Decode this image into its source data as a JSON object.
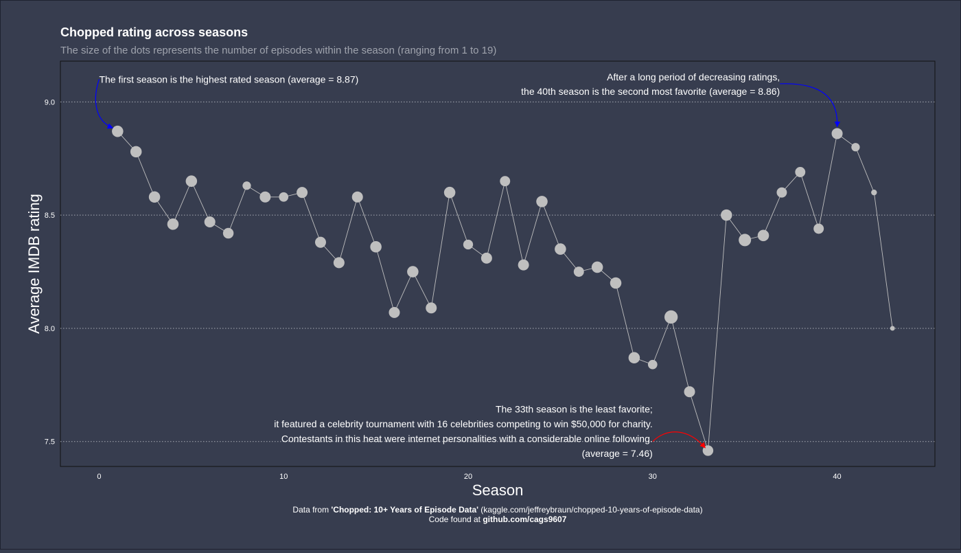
{
  "chart_data": {
    "type": "scatter",
    "title": "Chopped rating across seasons",
    "subtitle": "The size of the dots represents the number of episodes within the season (ranging from 1 to 19)",
    "xlabel": "Season",
    "ylabel": "Average IMDB rating",
    "xlim": [
      -2.1,
      45.3
    ],
    "ylim": [
      7.39,
      9.18
    ],
    "x_ticks": [
      0,
      10,
      20,
      30,
      40
    ],
    "y_ticks": [
      7.5,
      8.0,
      8.5,
      9.0
    ],
    "grid": "horizontal dotted",
    "connected": true,
    "colors": {
      "background": "#373d4f",
      "point": "#bfbfbf",
      "line": "#bfbfbf",
      "grid": "#a9adb6",
      "arrow_top": "#0000ff",
      "arrow_low": "#ff0000",
      "text": "#ffffff",
      "subtitle": "#9fa3ad"
    },
    "points": [
      {
        "season": 1,
        "rating": 8.87,
        "episodes": 13
      },
      {
        "season": 2,
        "rating": 8.78,
        "episodes": 13
      },
      {
        "season": 3,
        "rating": 8.58,
        "episodes": 13
      },
      {
        "season": 4,
        "rating": 8.46,
        "episodes": 13
      },
      {
        "season": 5,
        "rating": 8.65,
        "episodes": 13
      },
      {
        "season": 6,
        "rating": 8.47,
        "episodes": 12
      },
      {
        "season": 7,
        "rating": 8.42,
        "episodes": 11
      },
      {
        "season": 8,
        "rating": 8.63,
        "episodes": 6
      },
      {
        "season": 9,
        "rating": 8.58,
        "episodes": 12
      },
      {
        "season": 10,
        "rating": 8.58,
        "episodes": 8
      },
      {
        "season": 11,
        "rating": 8.6,
        "episodes": 12
      },
      {
        "season": 12,
        "rating": 8.38,
        "episodes": 12
      },
      {
        "season": 13,
        "rating": 8.29,
        "episodes": 12
      },
      {
        "season": 14,
        "rating": 8.58,
        "episodes": 12
      },
      {
        "season": 15,
        "rating": 8.36,
        "episodes": 13
      },
      {
        "season": 16,
        "rating": 8.07,
        "episodes": 12
      },
      {
        "season": 17,
        "rating": 8.25,
        "episodes": 13
      },
      {
        "season": 18,
        "rating": 8.09,
        "episodes": 12
      },
      {
        "season": 19,
        "rating": 8.6,
        "episodes": 13
      },
      {
        "season": 20,
        "rating": 8.37,
        "episodes": 9
      },
      {
        "season": 21,
        "rating": 8.31,
        "episodes": 12
      },
      {
        "season": 22,
        "rating": 8.65,
        "episodes": 10
      },
      {
        "season": 23,
        "rating": 8.28,
        "episodes": 12
      },
      {
        "season": 24,
        "rating": 8.56,
        "episodes": 13
      },
      {
        "season": 25,
        "rating": 8.35,
        "episodes": 13
      },
      {
        "season": 26,
        "rating": 8.25,
        "episodes": 10
      },
      {
        "season": 27,
        "rating": 8.27,
        "episodes": 13
      },
      {
        "season": 28,
        "rating": 8.2,
        "episodes": 13
      },
      {
        "season": 29,
        "rating": 7.87,
        "episodes": 13
      },
      {
        "season": 30,
        "rating": 7.84,
        "episodes": 8
      },
      {
        "season": 31,
        "rating": 8.05,
        "episodes": 19
      },
      {
        "season": 32,
        "rating": 7.72,
        "episodes": 12
      },
      {
        "season": 33,
        "rating": 7.46,
        "episodes": 11
      },
      {
        "season": 34,
        "rating": 8.5,
        "episodes": 13
      },
      {
        "season": 35,
        "rating": 8.39,
        "episodes": 16
      },
      {
        "season": 36,
        "rating": 8.41,
        "episodes": 13
      },
      {
        "season": 37,
        "rating": 8.6,
        "episodes": 10
      },
      {
        "season": 38,
        "rating": 8.69,
        "episodes": 10
      },
      {
        "season": 39,
        "rating": 8.44,
        "episodes": 10
      },
      {
        "season": 40,
        "rating": 8.86,
        "episodes": 12
      },
      {
        "season": 41,
        "rating": 8.8,
        "episodes": 6
      },
      {
        "season": 42,
        "rating": 8.6,
        "episodes": 2
      },
      {
        "season": 43,
        "rating": 8.0,
        "episodes": 1
      }
    ],
    "annotations": {
      "first": {
        "lines": [
          "The first season is the highest rated season (average = 8.87)"
        ],
        "anchor_season": 0,
        "anchor_rating": 9.1,
        "target_season": 1,
        "target_rating": 8.87,
        "color": "#0000ff"
      },
      "fortieth": {
        "lines": [
          "After a long period of decreasing ratings,",
          "the 40th season is the second most favorite (average = 8.86)"
        ],
        "anchor_season": 36.9,
        "anchor_rating": 9.08,
        "target_season": 40,
        "target_rating": 8.86,
        "color": "#0000ff"
      },
      "thirtythird": {
        "lines": [
          "The 33th season is the least favorite;",
          "it featured a celebrity tournament with 16 celebrities competing to win $50,000 for charity.",
          "Contestants in this heat were internet personalities with a considerable online following.",
          "(average = 7.46)"
        ],
        "anchor_season": 30.0,
        "anchor_rating": 7.5,
        "target_season": 33,
        "target_rating": 7.46,
        "color": "#ff0000"
      }
    }
  },
  "caption": {
    "line1_prefix": "Data from ",
    "line1_bold": "'Chopped: 10+ Years of Episode Data'",
    "line1_suffix": " (kaggle.com/jeffreybraun/chopped-10-years-of-episode-data)",
    "line2_prefix": "Code found at ",
    "line2_bold": "github.com/cags9607"
  }
}
